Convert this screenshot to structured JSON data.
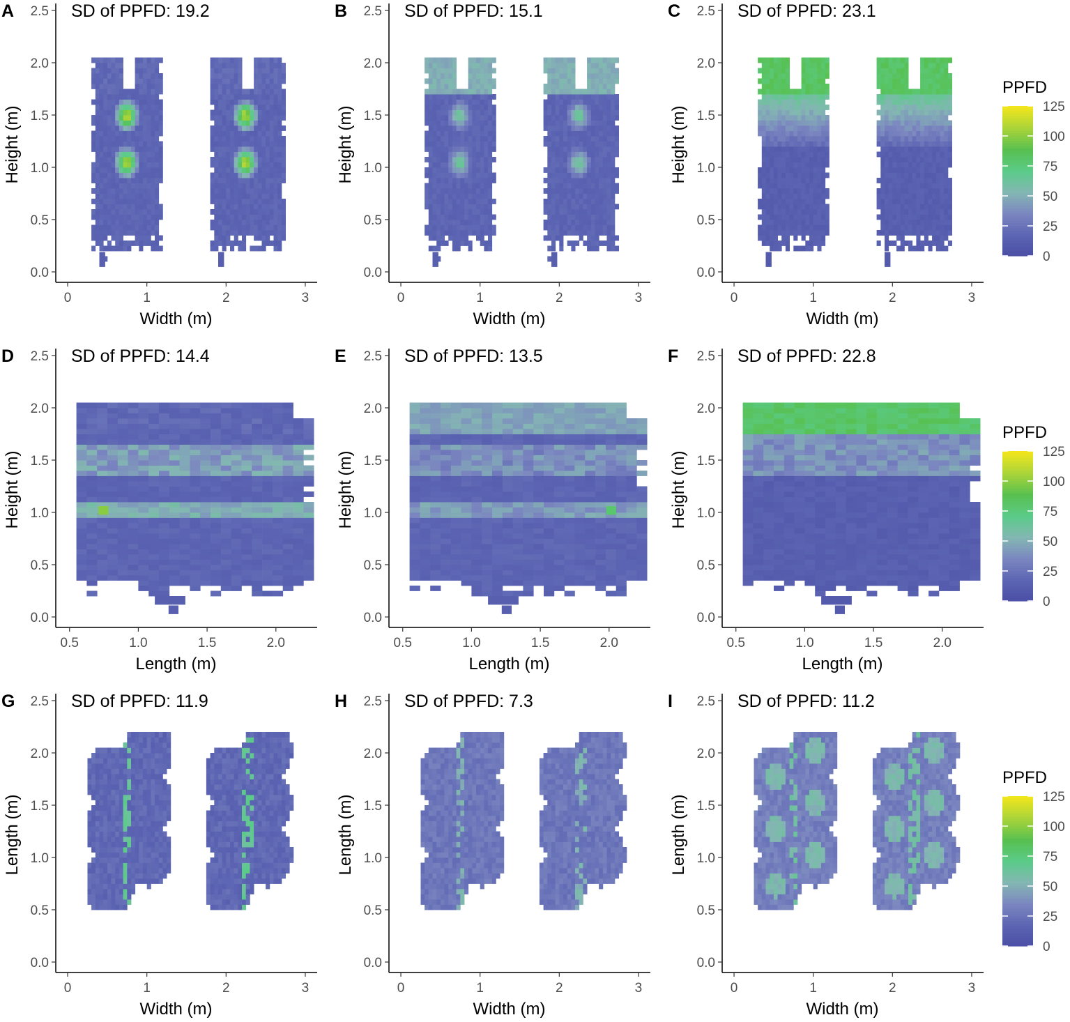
{
  "figure": {
    "colorbar_title": "PPFD",
    "colorbar_ticks": [
      "0",
      "25",
      "50",
      "75",
      "100",
      "125"
    ],
    "colorbar_range": [
      0,
      125
    ],
    "colormap": [
      "#4b4ea5",
      "#5b64b2",
      "#7b86c0",
      "#84b6b3",
      "#5bcb8a",
      "#58c04f",
      "#a9d43a",
      "#f1e51d"
    ]
  },
  "chart_data": [
    {
      "type": "heatmap",
      "panel": "A",
      "title": "SD of PPFD: 19.2",
      "xlabel": "Width (m)",
      "ylabel": "Height (m)",
      "xlim": [
        -0.15,
        3.15
      ],
      "ylim": [
        -0.1,
        2.6
      ],
      "xticks": [
        0,
        1,
        2,
        3
      ],
      "xtick_labels": [
        "0",
        "1",
        "2",
        "3"
      ],
      "yticks": [
        0,
        0.5,
        1,
        1.5,
        2,
        2.5
      ],
      "ytick_labels": [
        "0.0",
        "0.5",
        "1.0",
        "1.5",
        "2.0",
        "2.5"
      ],
      "layout": "vertical",
      "sd": 19.2,
      "base": 14,
      "top_value": 20,
      "hot_value": 118,
      "band_value": 0
    },
    {
      "type": "heatmap",
      "panel": "B",
      "title": "SD of PPFD: 15.1",
      "xlabel": "Width (m)",
      "ylabel": "Height (m)",
      "xlim": [
        -0.15,
        3.15
      ],
      "ylim": [
        -0.1,
        2.6
      ],
      "xticks": [
        0,
        1,
        2,
        3
      ],
      "xtick_labels": [
        "0",
        "1",
        "2",
        "3"
      ],
      "yticks": [
        0,
        0.5,
        1,
        1.5,
        2,
        2.5
      ],
      "ytick_labels": [
        "0.0",
        "0.5",
        "1.0",
        "1.5",
        "2.0",
        "2.5"
      ],
      "layout": "vertical",
      "sd": 15.1,
      "base": 14,
      "top_value": 50,
      "hot_value": 68,
      "band_value": 0
    },
    {
      "type": "heatmap",
      "panel": "C",
      "title": "SD of PPFD: 23.1",
      "xlabel": "Width (m)",
      "ylabel": "Height (m)",
      "xlim": [
        -0.15,
        3.15
      ],
      "ylim": [
        -0.1,
        2.6
      ],
      "xticks": [
        0,
        1,
        2,
        3
      ],
      "xtick_labels": [
        "0",
        "1",
        "2",
        "3"
      ],
      "yticks": [
        0,
        0.5,
        1,
        1.5,
        2,
        2.5
      ],
      "ytick_labels": [
        "0.0",
        "0.5",
        "1.0",
        "1.5",
        "2.0",
        "2.5"
      ],
      "layout": "vertical",
      "sd": 23.1,
      "base": 10,
      "top_value": 82,
      "hot_value": 0,
      "band_value": 0
    },
    {
      "type": "heatmap",
      "panel": "D",
      "title": "SD of PPFD: 14.4",
      "xlabel": "Length (m)",
      "ylabel": "Height (m)",
      "xlim": [
        0.4,
        2.3
      ],
      "ylim": [
        -0.1,
        2.6
      ],
      "xticks": [
        0.5,
        1,
        1.5,
        2
      ],
      "xtick_labels": [
        "0.5",
        "1.0",
        "1.5",
        "2.0"
      ],
      "yticks": [
        0,
        0.5,
        1,
        1.5,
        2,
        2.5
      ],
      "ytick_labels": [
        "0.0",
        "0.5",
        "1.0",
        "1.5",
        "2.0",
        "2.5"
      ],
      "layout": "side",
      "sd": 14.4,
      "base": 14,
      "top_value": 18,
      "hot_value": 60,
      "band_value": 42
    },
    {
      "type": "heatmap",
      "panel": "E",
      "title": "SD of PPFD: 13.5",
      "xlabel": "Length (m)",
      "ylabel": "Height (m)",
      "xlim": [
        0.4,
        2.3
      ],
      "ylim": [
        -0.1,
        2.6
      ],
      "xticks": [
        0.5,
        1,
        1.5,
        2
      ],
      "xtick_labels": [
        "0.5",
        "1.0",
        "1.5",
        "2.0"
      ],
      "yticks": [
        0,
        0.5,
        1,
        1.5,
        2,
        2.5
      ],
      "ytick_labels": [
        "0.0",
        "0.5",
        "1.0",
        "1.5",
        "2.0",
        "2.5"
      ],
      "layout": "side",
      "sd": 13.5,
      "base": 14,
      "top_value": 45,
      "hot_value": 40,
      "band_value": 34
    },
    {
      "type": "heatmap",
      "panel": "F",
      "title": "SD of PPFD: 22.8",
      "xlabel": "Length (m)",
      "ylabel": "Height (m)",
      "xlim": [
        0.4,
        2.3
      ],
      "ylim": [
        -0.1,
        2.6
      ],
      "xticks": [
        0.5,
        1,
        1.5,
        2
      ],
      "xtick_labels": [
        "0.5",
        "1.0",
        "1.5",
        "2.0"
      ],
      "yticks": [
        0,
        0.5,
        1,
        1.5,
        2,
        2.5
      ],
      "ytick_labels": [
        "0.0",
        "0.5",
        "1.0",
        "1.5",
        "2.0",
        "2.5"
      ],
      "layout": "side",
      "sd": 22.8,
      "base": 10,
      "top_value": 80,
      "hot_value": 0,
      "band_value": 0
    },
    {
      "type": "heatmap",
      "panel": "G",
      "title": "SD of PPFD: 11.9",
      "xlabel": "Width (m)",
      "ylabel": "Length (m)",
      "xlim": [
        -0.15,
        3.15
      ],
      "ylim": [
        -0.1,
        2.6
      ],
      "xticks": [
        0,
        1,
        2,
        3
      ],
      "xtick_labels": [
        "0",
        "1",
        "2",
        "3"
      ],
      "yticks": [
        0,
        0.5,
        1,
        1.5,
        2,
        2.5
      ],
      "ytick_labels": [
        "0.0",
        "0.5",
        "1.0",
        "1.5",
        "2.0",
        "2.5"
      ],
      "layout": "top",
      "sd": 11.9,
      "base": 18,
      "top_value": 0,
      "hot_value": 62,
      "band_value": 0
    },
    {
      "type": "heatmap",
      "panel": "H",
      "title": "SD of PPFD: 7.3",
      "xlabel": "Width (m)",
      "ylabel": "Length (m)",
      "xlim": [
        -0.15,
        3.15
      ],
      "ylim": [
        -0.1,
        2.6
      ],
      "xticks": [
        0,
        1,
        2,
        3
      ],
      "xtick_labels": [
        "0",
        "1",
        "2",
        "3"
      ],
      "yticks": [
        0,
        0.5,
        1,
        1.5,
        2,
        2.5
      ],
      "ytick_labels": [
        "0.0",
        "0.5",
        "1.0",
        "1.5",
        "2.0",
        "2.5"
      ],
      "layout": "top",
      "sd": 7.3,
      "base": 26,
      "top_value": 0,
      "hot_value": 48,
      "band_value": 0
    },
    {
      "type": "heatmap",
      "panel": "I",
      "title": "SD of PPFD: 11.2",
      "xlabel": "Width (m)",
      "ylabel": "Length (m)",
      "xlim": [
        -0.15,
        3.15
      ],
      "ylim": [
        -0.1,
        2.6
      ],
      "xticks": [
        0,
        1,
        2,
        3
      ],
      "xtick_labels": [
        "0",
        "1",
        "2",
        "3"
      ],
      "yticks": [
        0,
        0.5,
        1,
        1.5,
        2,
        2.5
      ],
      "ytick_labels": [
        "0.0",
        "0.5",
        "1.0",
        "1.5",
        "2.0",
        "2.5"
      ],
      "layout": "top",
      "sd": 11.2,
      "base": 30,
      "top_value": 0,
      "hot_value": 55,
      "band_value": 0
    }
  ]
}
